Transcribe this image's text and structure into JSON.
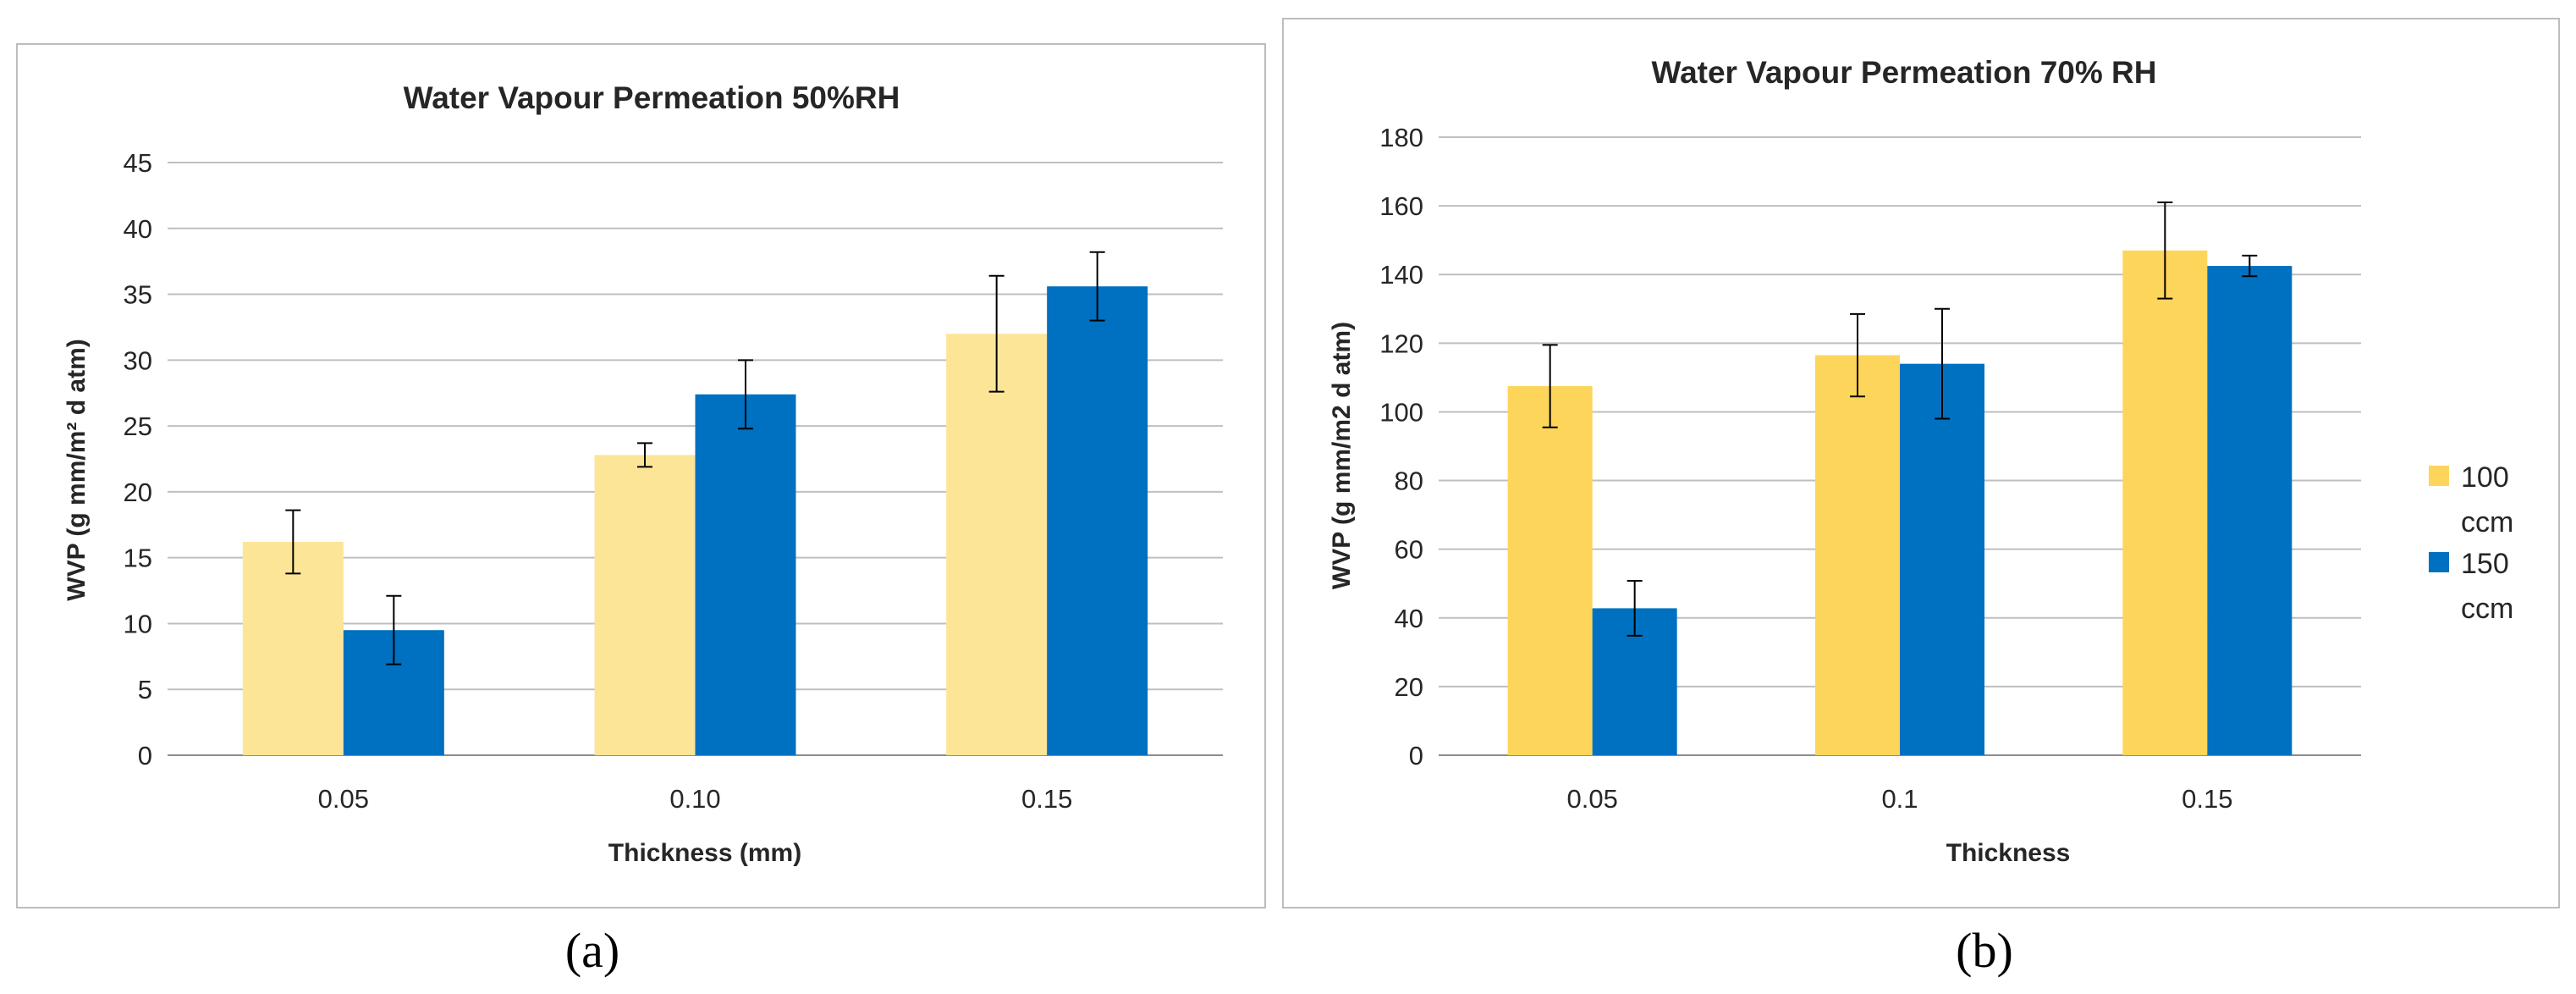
{
  "chart_data": [
    {
      "type": "bar",
      "panel_label": "(a)",
      "title": "Water Vapour Permeation 50%RH",
      "xlabel": "Thickness (mm)",
      "ylabel": "WVP (g mm/m² d atm)",
      "categories": [
        "0.05",
        "0.10",
        "0.15"
      ],
      "ylim": [
        0,
        45
      ],
      "yticks": [
        0,
        5,
        10,
        15,
        20,
        25,
        30,
        35,
        40,
        45
      ],
      "grid": true,
      "series": [
        {
          "name": "100 ccm",
          "color": "#fde598",
          "values": [
            16.2,
            22.8,
            32.0
          ],
          "errors": [
            2.4,
            0.9,
            4.4
          ]
        },
        {
          "name": "150 ccm",
          "color": "#0070c0",
          "values": [
            9.5,
            27.4,
            35.6
          ],
          "errors": [
            2.6,
            2.6,
            2.6
          ]
        }
      ]
    },
    {
      "type": "bar",
      "panel_label": "(b)",
      "title": "Water Vapour Permeation 70% RH",
      "xlabel": "Thickness",
      "ylabel": "WVP (g mm/m2 d atm)",
      "categories": [
        "0.05",
        "0.1",
        "0.15"
      ],
      "ylim": [
        0,
        180
      ],
      "yticks": [
        0,
        20,
        40,
        60,
        80,
        100,
        120,
        140,
        160,
        180
      ],
      "grid": true,
      "legend_position": "right",
      "legend": [
        {
          "line1": "100",
          "line2": "ccm"
        },
        {
          "line1": "150",
          "line2": "ccm"
        }
      ],
      "series": [
        {
          "name": "100 ccm",
          "color": "#fdd55a",
          "values": [
            107.5,
            116.5,
            147.0
          ],
          "errors": [
            12,
            12,
            14
          ]
        },
        {
          "name": "150 ccm",
          "color": "#0070c0",
          "values": [
            42.8,
            114.0,
            142.5
          ],
          "errors": [
            8,
            16,
            3
          ]
        }
      ]
    }
  ]
}
